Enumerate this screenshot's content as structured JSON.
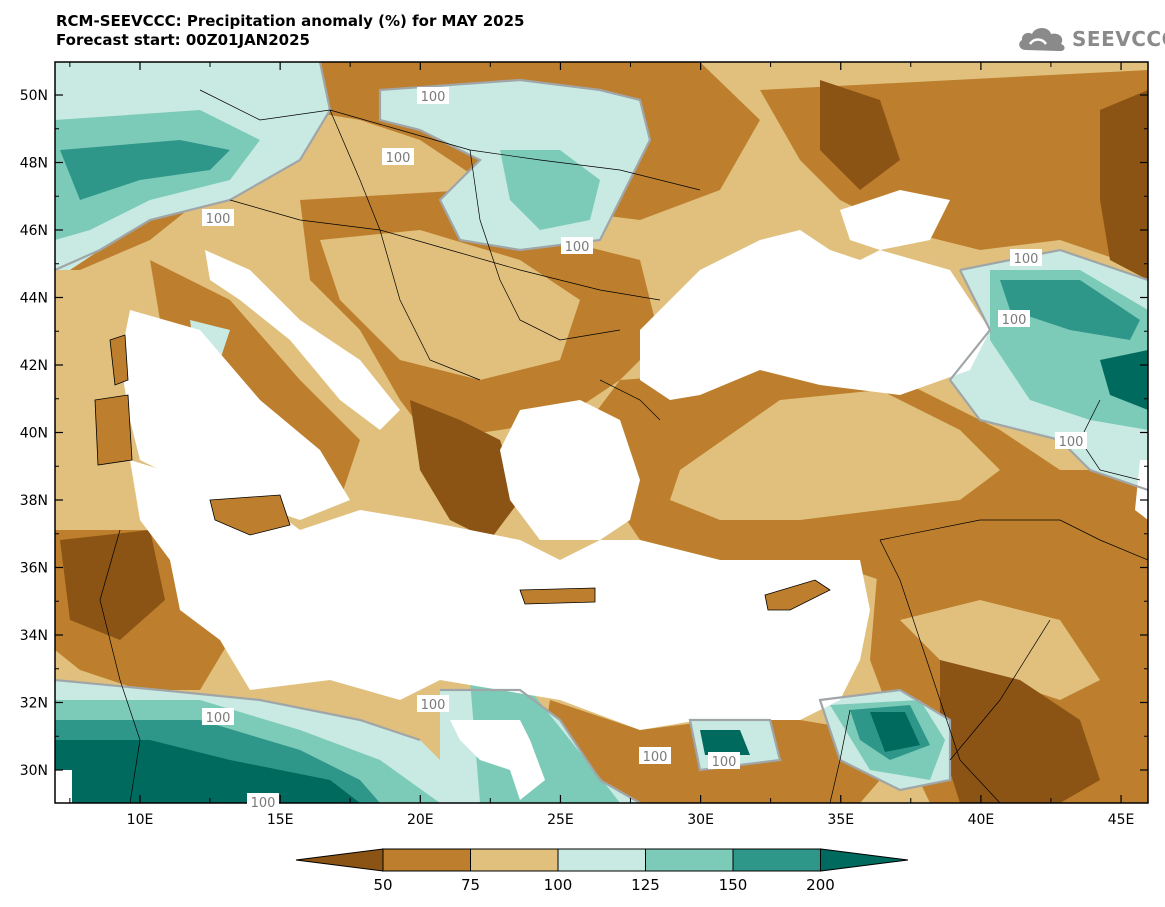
{
  "header": {
    "title_line1": "RCM-SEEVCCC: Precipitation anomaly (%) for MAY 2025",
    "title_line2": "Forecast start: 00Z01JAN2025"
  },
  "logo": {
    "icon": "cloud-icon",
    "text": "SEEVCCC"
  },
  "map": {
    "lat_labels": [
      "50N",
      "48N",
      "46N",
      "44N",
      "42N",
      "40N",
      "38N",
      "36N",
      "34N",
      "32N",
      "30N"
    ],
    "lon_labels": [
      "10E",
      "15E",
      "20E",
      "25E",
      "30E",
      "35E",
      "40E",
      "45E"
    ],
    "contour_label": "100",
    "contour_label_count": 14
  },
  "legend": {
    "colors": [
      "#8c5414",
      "#bd7f2e",
      "#e0c07c",
      "#c8eae2",
      "#7ccbb8",
      "#2f968a",
      "#006a5e"
    ],
    "tick_labels": [
      "50",
      "75",
      "100",
      "125",
      "150",
      "200"
    ]
  }
}
